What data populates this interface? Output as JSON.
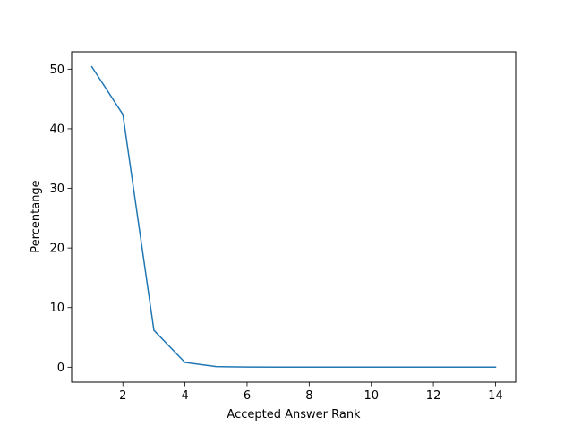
{
  "chart_data": {
    "type": "line",
    "xlabel": "Accepted Answer Rank",
    "ylabel": "Percentange",
    "xlim": [
      0.35,
      14.65
    ],
    "ylim": [
      -2.5,
      52.9
    ],
    "xticks": [
      2,
      4,
      6,
      8,
      10,
      12,
      14
    ],
    "yticks": [
      0,
      10,
      20,
      30,
      40,
      50
    ],
    "grid": false,
    "series": [
      {
        "color": "#1f77b4",
        "x": [
          1,
          2,
          3,
          4,
          5,
          6,
          7,
          8,
          9,
          10,
          11,
          12,
          13,
          14
        ],
        "y": [
          50.4,
          42.4,
          6.2,
          0.8,
          0.1,
          0.03,
          0.02,
          0.02,
          0.02,
          0.02,
          0.02,
          0.02,
          0.02,
          0.02
        ]
      }
    ]
  }
}
